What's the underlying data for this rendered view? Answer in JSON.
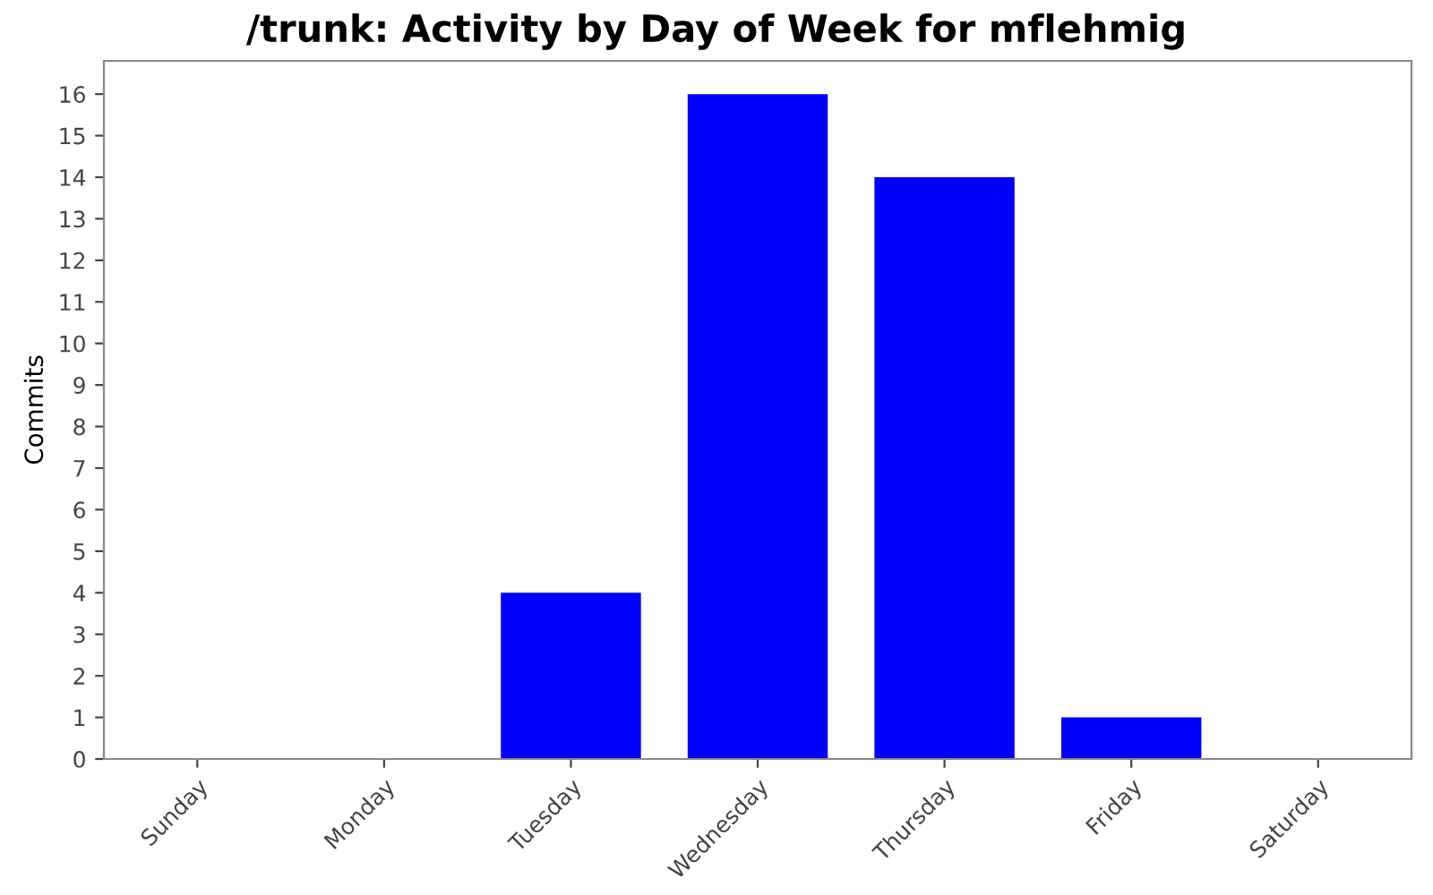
{
  "chart_data": {
    "type": "bar",
    "title": "/trunk: Activity by Day of Week for mflehmig",
    "ylabel": "Commits",
    "categories": [
      "Sunday",
      "Monday",
      "Tuesday",
      "Wednesday",
      "Thursday",
      "Friday",
      "Saturday"
    ],
    "values": [
      0,
      0,
      4,
      16,
      14,
      1,
      0
    ],
    "color": "#0000ff",
    "ylim": [
      0,
      16.8
    ],
    "yticks": [
      0,
      1,
      2,
      3,
      4,
      5,
      6,
      7,
      8,
      9,
      10,
      11,
      12,
      13,
      14,
      15,
      16
    ],
    "grid": false,
    "legend": false
  }
}
